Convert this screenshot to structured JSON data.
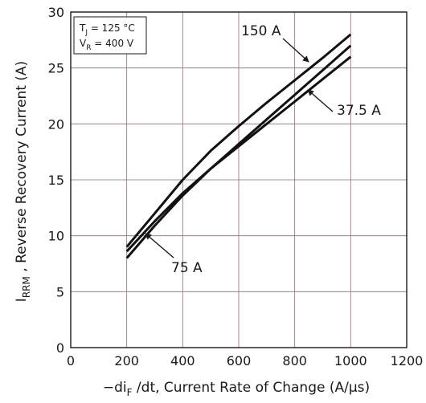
{
  "chart_data": {
    "type": "line",
    "xlabel": {
      "prefix": "−di",
      "sub": "F",
      "suffix": " /dt, Current Rate of Change (A/µs)"
    },
    "ylabel": {
      "prefix": "I",
      "sub": "RRM",
      "suffix": " , Reverse Recovery Current (A)"
    },
    "xlim": [
      0,
      1200
    ],
    "ylim": [
      0,
      30
    ],
    "xticks": [
      "0",
      "200",
      "400",
      "600",
      "800",
      "1000",
      "1200"
    ],
    "yticks": [
      "0",
      "5",
      "10",
      "15",
      "20",
      "25",
      "30"
    ],
    "grid": true,
    "conditions": [
      {
        "prefix": "T",
        "sub": "J",
        "suffix": " = 125 °C"
      },
      {
        "prefix": "V",
        "sub": "R",
        "suffix": " = 400 V"
      }
    ],
    "series": [
      {
        "name": "150 A",
        "x": [
          200,
          300,
          400,
          500,
          600,
          700,
          800,
          900,
          1000
        ],
        "y": [
          9.0,
          12.0,
          15.0,
          17.6,
          19.8,
          21.9,
          23.9,
          25.9,
          28.0
        ]
      },
      {
        "name": "75 A",
        "x": [
          200,
          300,
          400,
          500,
          600,
          700,
          800,
          900,
          1000
        ],
        "y": [
          8.6,
          11.3,
          13.8,
          16.0,
          18.2,
          20.4,
          22.6,
          24.8,
          27.0
        ]
      },
      {
        "name": "37.5 A",
        "x": [
          200,
          300,
          400,
          500,
          600,
          700,
          800,
          900,
          1000
        ],
        "y": [
          8.0,
          10.9,
          13.6,
          16.0,
          18.0,
          20.0,
          22.0,
          24.0,
          26.0
        ]
      }
    ],
    "annotations": [
      {
        "series": "150 A",
        "text": "150 A"
      },
      {
        "series": "37.5 A",
        "text": "37.5 A"
      },
      {
        "series": "75 A",
        "text": "75 A"
      }
    ]
  }
}
